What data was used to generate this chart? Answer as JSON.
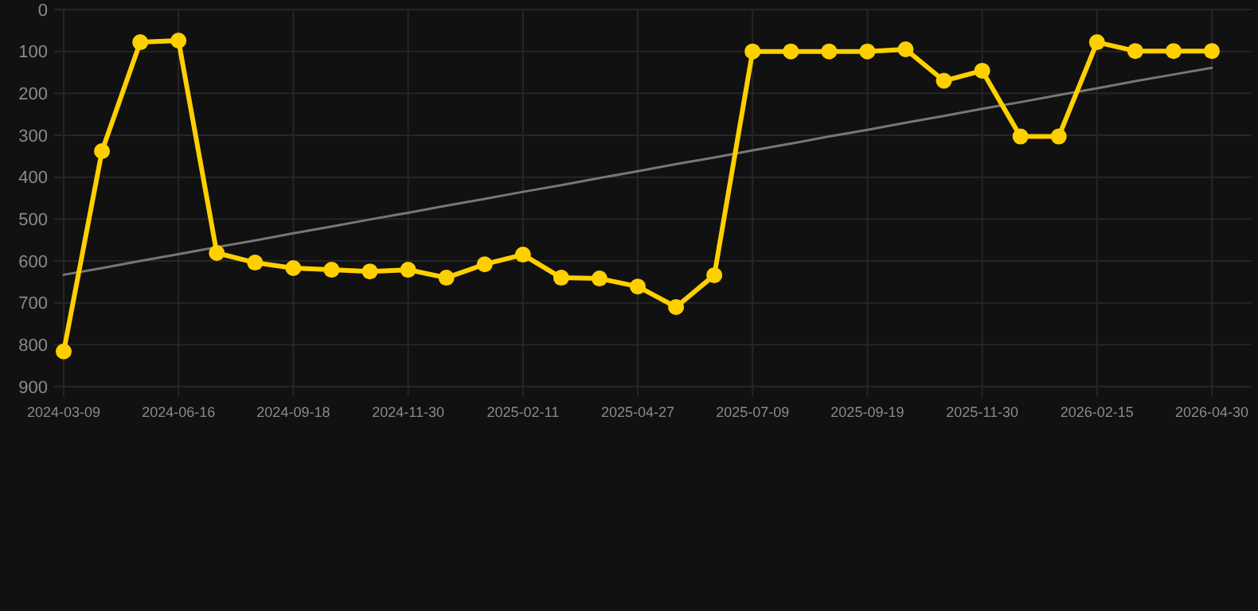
{
  "chart_data": {
    "type": "line",
    "categories": [
      "2024-03-09",
      null,
      null,
      "2024-06-16",
      null,
      null,
      "2024-09-18",
      null,
      null,
      "2024-11-30",
      null,
      null,
      "2025-02-11",
      null,
      null,
      "2025-04-27",
      null,
      null,
      "2025-07-09",
      null,
      null,
      "2025-09-19",
      null,
      null,
      "2025-11-30",
      null,
      null,
      "2026-02-15",
      null,
      null,
      "2026-04-30"
    ],
    "series": [
      {
        "color": "#ffd000",
        "values": [
          816,
          338,
          78,
          74,
          581,
          604,
          617,
          621,
          625,
          621,
          640,
          608,
          585,
          640,
          642,
          661,
          710,
          634,
          100,
          100,
          100,
          100,
          95,
          170,
          146,
          303,
          303,
          78,
          99,
          99,
          99
        ],
        "marker": "circle"
      },
      {
        "type": "line",
        "color": "#777777",
        "values": [
          633,
          617,
          600,
          584,
          567,
          551,
          534,
          518,
          501,
          485,
          468,
          452,
          435,
          419,
          402,
          386,
          369,
          353,
          336,
          320,
          303,
          287,
          270,
          254,
          237,
          221,
          204,
          188,
          171,
          155,
          139
        ],
        "marker": "none"
      }
    ],
    "ylim": [
      900,
      0
    ],
    "yticks": [
      0,
      100,
      200,
      300,
      400,
      500,
      600,
      700,
      800,
      900
    ],
    "grid": true
  }
}
